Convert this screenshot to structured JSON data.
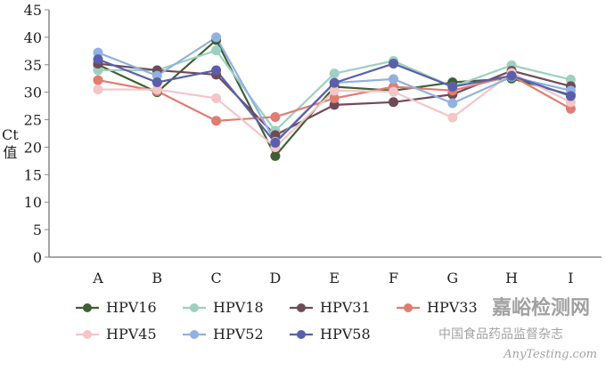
{
  "chart_data": {
    "type": "line",
    "title": "",
    "xlabel": "",
    "ylabel": [
      "Ct",
      "值"
    ],
    "ylim": [
      0,
      45
    ],
    "yticks": [
      0,
      5,
      10,
      15,
      20,
      25,
      30,
      35,
      40,
      45
    ],
    "categories": [
      "A",
      "B",
      "C",
      "D",
      "E",
      "F",
      "G",
      "H",
      "I"
    ],
    "legend_position": "bottom",
    "series": [
      {
        "name": "HPV16",
        "color": "#3f5f34",
        "values": [
          35.0,
          30.0,
          39.5,
          18.4,
          31.0,
          30.3,
          31.8,
          32.5,
          29.5
        ]
      },
      {
        "name": "HPV18",
        "color": "#9dd0c1",
        "values": [
          34.0,
          34.0,
          37.6,
          23.0,
          33.4,
          35.7,
          31.0,
          34.9,
          32.3
        ]
      },
      {
        "name": "HPV31",
        "color": "#6e4b56",
        "values": [
          35.2,
          34.0,
          33.2,
          22.2,
          27.7,
          28.2,
          29.6,
          33.9,
          31.1
        ]
      },
      {
        "name": "HPV33",
        "color": "#e07d70",
        "values": [
          32.2,
          30.2,
          24.8,
          25.5,
          28.9,
          31.0,
          30.3,
          33.0,
          27.0
        ]
      },
      {
        "name": "HPV45",
        "color": "#f4c5c9",
        "values": [
          30.5,
          30.5,
          28.9,
          20.0,
          30.3,
          30.1,
          25.4,
          33.5,
          28.2
        ]
      },
      {
        "name": "HPV52",
        "color": "#91b1e1",
        "values": [
          37.2,
          33.0,
          40.0,
          21.0,
          31.7,
          32.4,
          28.0,
          32.8,
          30.3
        ]
      },
      {
        "name": "HPV58",
        "color": "#5b5fa9",
        "values": [
          36.0,
          31.8,
          34.0,
          20.8,
          31.7,
          35.2,
          31.0,
          33.0,
          29.3
        ]
      }
    ]
  },
  "watermark": {
    "line1": "嘉峪检测网",
    "line2": "AnyTesting.com",
    "line3": "中国食品药品监督杂志"
  }
}
